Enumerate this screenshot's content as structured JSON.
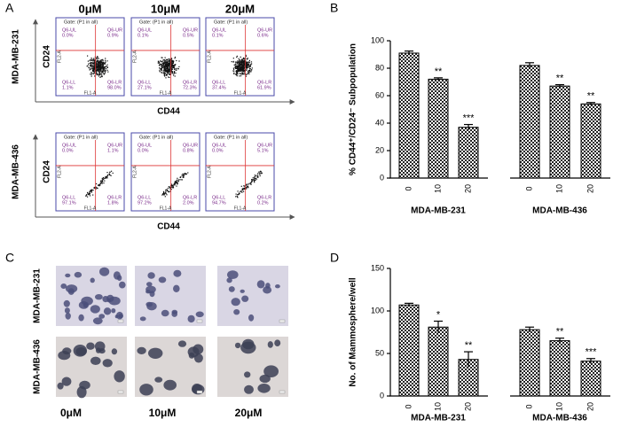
{
  "panel_labels": [
    "A",
    "B",
    "C",
    "D"
  ],
  "flow_cytometry": {
    "concentrations": [
      "0μM",
      "10μM",
      "20μM"
    ],
    "cell_lines": [
      "MDA-MB-231",
      "MDA-MB-436"
    ],
    "y_marker": "CD24",
    "x_marker": "CD44",
    "gate": "Gate: (P1 in all)",
    "y_channel": "FL2-A",
    "x_channel": "FL1-A",
    "quadrant_names": [
      "Q6-UL",
      "Q6-UR",
      "Q6-LL",
      "Q6-LR"
    ],
    "quadrant_values": [
      [
        [
          "0.0%",
          "0.9%",
          "1.1%",
          "98.0%"
        ],
        [
          "0.1%",
          "0.5%",
          "27.1%",
          "72.3%"
        ],
        [
          "0.1%",
          "0.6%",
          "37.4%",
          "61.9%"
        ]
      ],
      [
        [
          "0.0%",
          "1.1%",
          "97.1%",
          "1.8%"
        ],
        [
          "0.0%",
          "0.8%",
          "97.2%",
          "2.0%"
        ],
        [
          "0.0%",
          "5.1%",
          "94.7%",
          "0.2%"
        ]
      ]
    ]
  },
  "sphere_assay": {
    "cell_lines": [
      "MDA-MB-231",
      "MDA-MB-436"
    ],
    "concentrations": [
      "0μM",
      "10μM",
      "20μM"
    ]
  },
  "chart_data": [
    {
      "type": "bar",
      "ylabel": "% CD44⁺/CD24⁻ Subpopulation",
      "ylim": [
        0,
        100
      ],
      "yticks": [
        0,
        20,
        40,
        60,
        80,
        100
      ],
      "groups": [
        {
          "name": "MDA-MB-231",
          "categories": [
            "0",
            "10",
            "20"
          ],
          "values": [
            91,
            72,
            37
          ],
          "errors": [
            1.5,
            1,
            2
          ],
          "annotations": [
            null,
            "**",
            "***"
          ]
        },
        {
          "name": "MDA-MB-436",
          "categories": [
            "0",
            "10",
            "20"
          ],
          "values": [
            82,
            67,
            54
          ],
          "errors": [
            2,
            1,
            1
          ],
          "annotations": [
            null,
            "**",
            "**"
          ]
        }
      ]
    },
    {
      "type": "bar",
      "ylabel": "No. of Mammosphere/well",
      "ylim": [
        0,
        150
      ],
      "yticks": [
        0,
        50,
        100,
        150
      ],
      "groups": [
        {
          "name": "MDA-MB-231",
          "categories": [
            "0",
            "10",
            "20"
          ],
          "values": [
            107,
            81,
            43
          ],
          "errors": [
            2,
            7,
            9
          ],
          "annotations": [
            null,
            "*",
            "**"
          ]
        },
        {
          "name": "MDA-MB-436",
          "categories": [
            "0",
            "10",
            "20"
          ],
          "values": [
            78,
            65,
            41
          ],
          "errors": [
            3,
            3,
            3
          ],
          "annotations": [
            null,
            "**",
            "***"
          ]
        }
      ]
    }
  ]
}
